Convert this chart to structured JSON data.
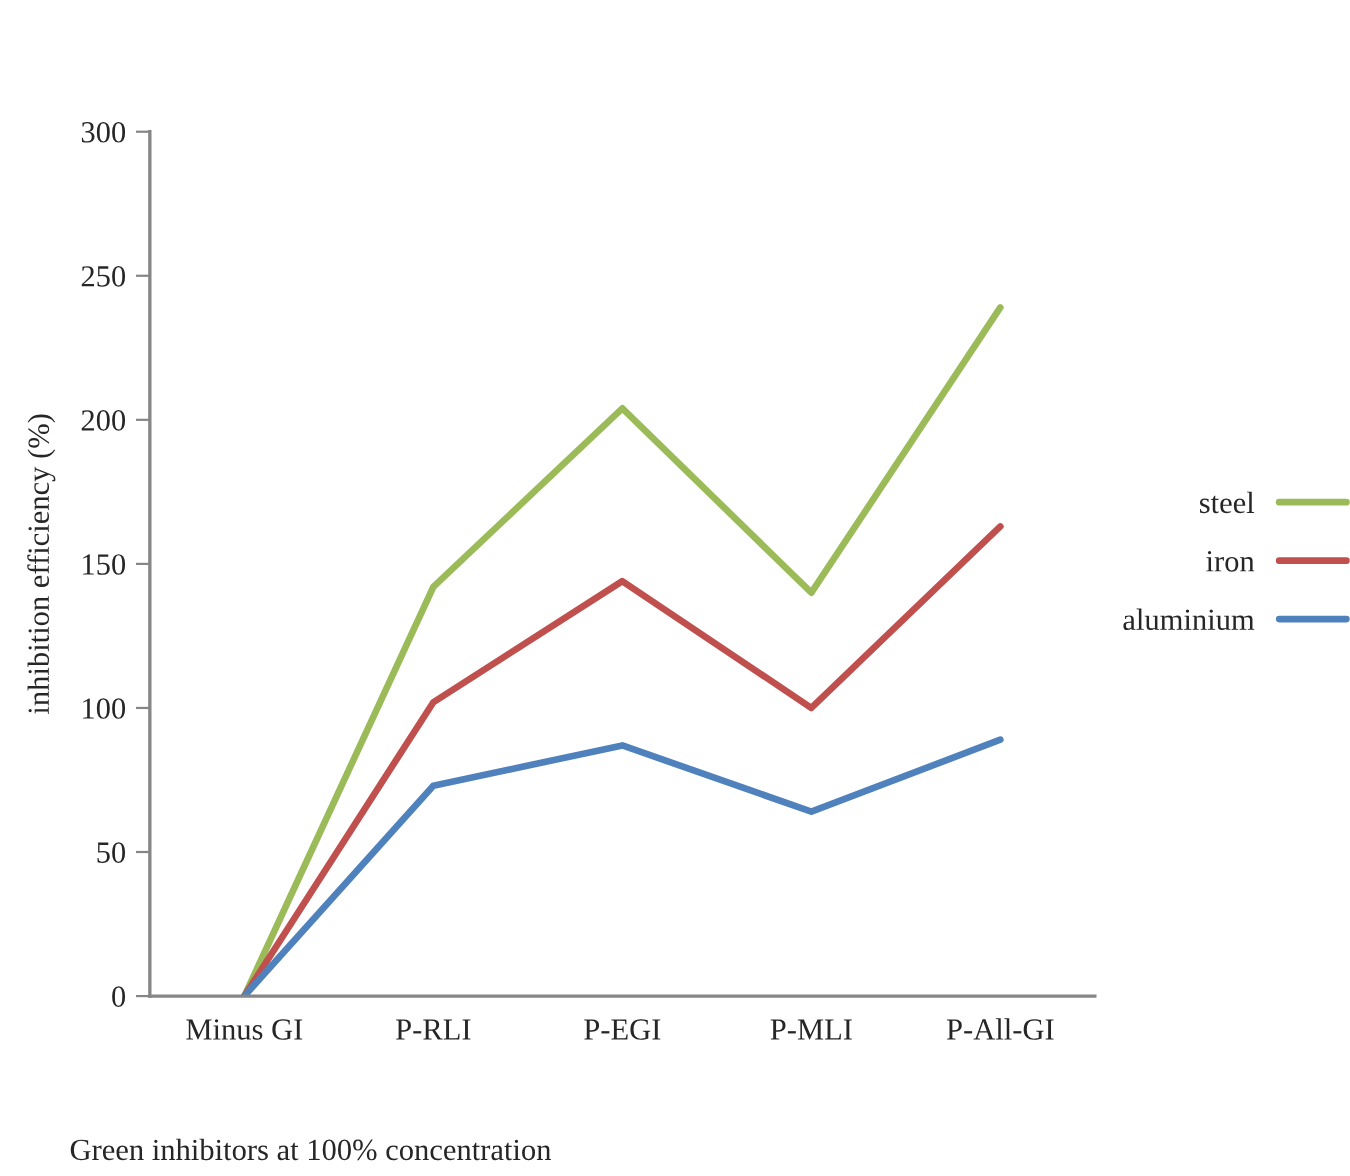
{
  "chart_data": {
    "type": "line",
    "ylabel": "inhibition efficiency (%)",
    "xlabel": "Green inhibitors at 100% concentration",
    "categories": [
      "Minus GI",
      "P-RLI",
      "P-EGI",
      "P-MLI",
      "P-All-GI"
    ],
    "series": [
      {
        "name": "steel",
        "color": "#9bbb59",
        "values": [
          0,
          142,
          204,
          140,
          239
        ]
      },
      {
        "name": "iron",
        "color": "#c0504d",
        "values": [
          0,
          102,
          144,
          100,
          163
        ]
      },
      {
        "name": "aluminium",
        "color": "#4f81bd",
        "values": [
          0,
          73,
          87,
          64,
          89
        ]
      }
    ],
    "ylim": [
      0,
      300
    ],
    "yticks": [
      0,
      50,
      100,
      150,
      200,
      250,
      300
    ],
    "grid": false,
    "legend": "right",
    "marker": "none",
    "line_style": "solid"
  }
}
